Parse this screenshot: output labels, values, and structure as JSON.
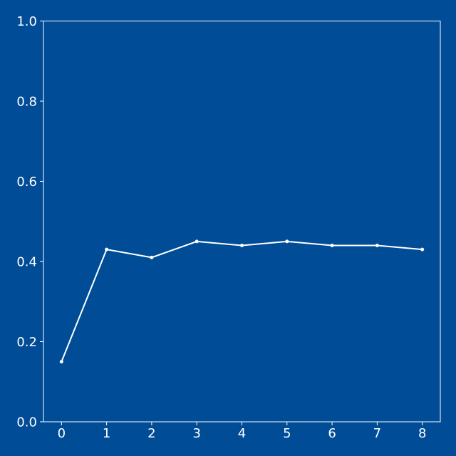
{
  "colors": {
    "background": "#004c97",
    "foreground": "#ffffff"
  },
  "chart_data": {
    "type": "line",
    "title": "",
    "xlabel": "",
    "ylabel": "",
    "x": [
      0,
      1,
      2,
      3,
      4,
      5,
      6,
      7,
      8
    ],
    "series": [
      {
        "values": [
          0.15,
          0.43,
          0.41,
          0.45,
          0.44,
          0.45,
          0.44,
          0.44,
          0.43
        ]
      }
    ],
    "xlim": [
      -0.4,
      8.4
    ],
    "ylim": [
      0,
      1
    ],
    "xticks": [
      "0",
      "1",
      "2",
      "3",
      "4",
      "5",
      "6",
      "7",
      "8"
    ],
    "yticks": [
      "0.0",
      "0.2",
      "0.4",
      "0.6",
      "0.8",
      "1.0"
    ],
    "grid": false,
    "markers": true
  }
}
